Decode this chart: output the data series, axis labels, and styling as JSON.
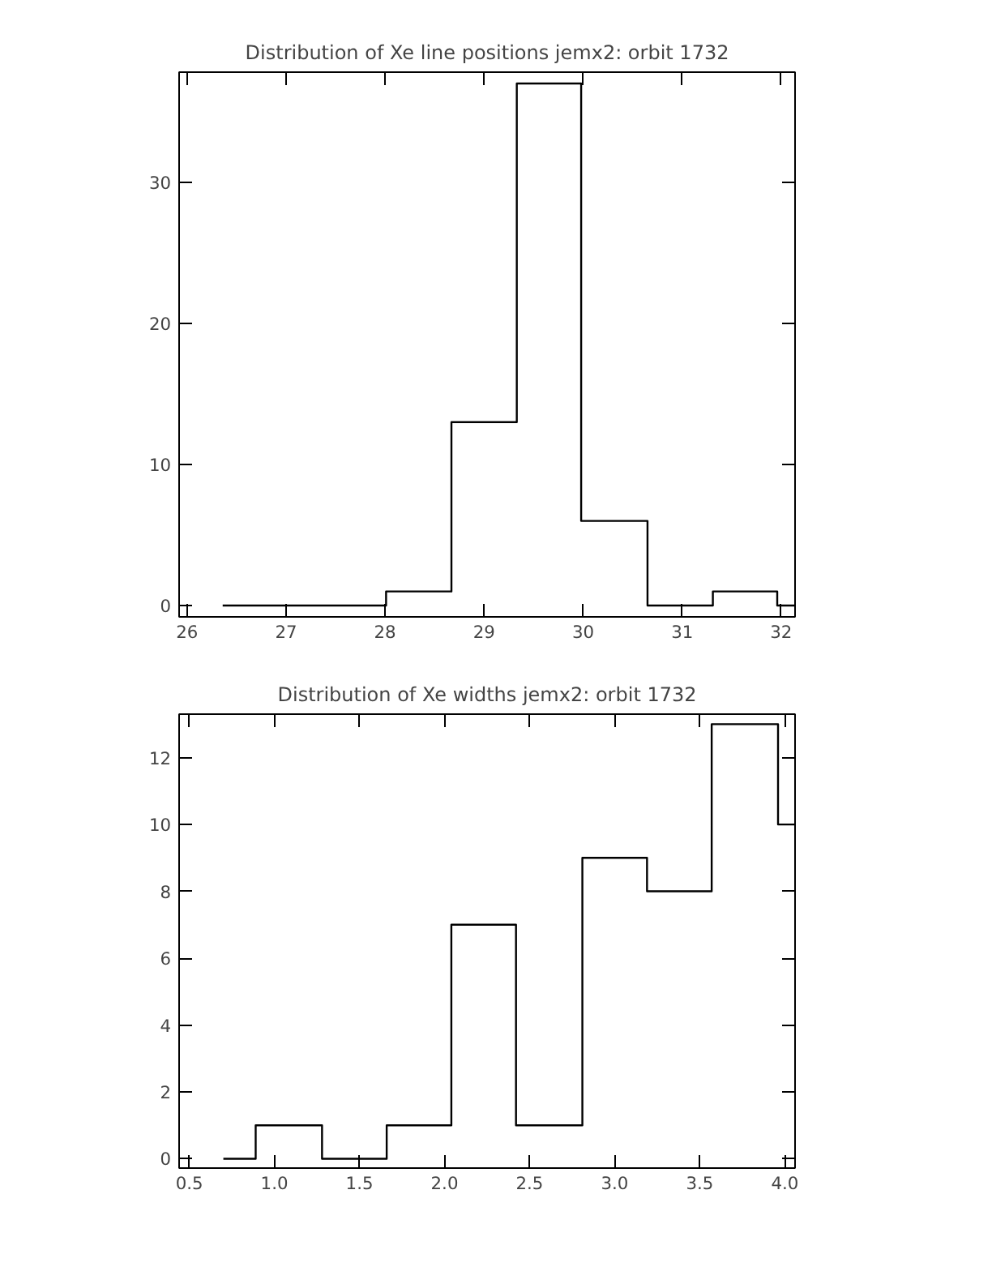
{
  "chart_data": [
    {
      "type": "histogram",
      "title": "Distribution of Xe line positions jemx2: orbit 1732",
      "color": "#000000",
      "bins": [
        26.36,
        28.01,
        28.67,
        29.33,
        29.98,
        30.65,
        31.31,
        31.96,
        32.14
      ],
      "values": [
        0,
        1,
        13,
        37,
        6,
        0,
        1,
        0
      ],
      "xlim": [
        25.92,
        32.14
      ],
      "ylim": [
        -0.8,
        37.8
      ],
      "xticks": [
        26,
        27,
        28,
        29,
        30,
        31,
        32
      ],
      "yticks": [
        0,
        10,
        20,
        30
      ],
      "grid": false
    },
    {
      "type": "histogram",
      "title": "Distribution of Xe widths jemx2: orbit 1732",
      "color": "#000000",
      "bins": [
        0.7,
        0.89,
        1.28,
        1.66,
        2.04,
        2.42,
        2.81,
        3.19,
        3.57,
        3.96,
        4.06
      ],
      "values": [
        0,
        1,
        0,
        1,
        7,
        1,
        9,
        8,
        13,
        10
      ],
      "xlim": [
        0.44,
        4.06
      ],
      "ylim": [
        -0.28,
        13.3
      ],
      "xticks": [
        {
          "value": 0.5,
          "label": "0.5"
        },
        {
          "value": 1,
          "label": "1.0"
        },
        {
          "value": 1.5,
          "label": "1.5"
        },
        {
          "value": 2,
          "label": "2.0"
        },
        {
          "value": 2.5,
          "label": "2.5"
        },
        {
          "value": 3,
          "label": "3.0"
        },
        {
          "value": 3.5,
          "label": "3.5"
        },
        {
          "value": 4,
          "label": "4.0"
        }
      ],
      "yticks": [
        0,
        2,
        4,
        6,
        8,
        10,
        12
      ],
      "grid": false
    }
  ]
}
